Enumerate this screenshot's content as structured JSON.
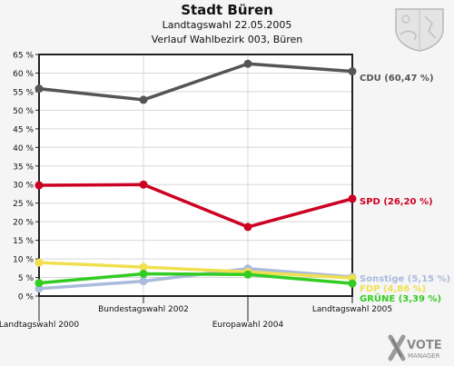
{
  "header": {
    "title": "Stadt Büren",
    "subtitle1": "Landtagswahl 22.05.2005",
    "subtitle2": "Verlauf Wahlbezirk 003, Büren"
  },
  "brand": {
    "logo_line1": "VOTE",
    "logo_line2": "MANAGER",
    "logo_icon": "vote-manager-x-icon",
    "crest_icon": "state-crest-icon"
  },
  "chart_data": {
    "type": "line",
    "categories": [
      "Landtagswahl 2000",
      "Bundestagswahl 2002",
      "Europawahl 2004",
      "Landtagswahl 2005"
    ],
    "ylim": [
      0,
      65
    ],
    "yticks": [
      0,
      5,
      10,
      15,
      20,
      25,
      30,
      35,
      40,
      45,
      50,
      55,
      60,
      65
    ],
    "ytick_labels": [
      "0 %",
      "5 %",
      "10 %",
      "15 %",
      "20 %",
      "25 %",
      "30 %",
      "35 %",
      "40 %",
      "45 %",
      "50 %",
      "55 %",
      "60 %",
      "65 %"
    ],
    "grid": true,
    "series": [
      {
        "name": "CDU",
        "label": "CDU (60,47 %)",
        "color": "#555555",
        "values": [
          55.8,
          52.8,
          62.5,
          60.47
        ]
      },
      {
        "name": "SPD",
        "label": "SPD (26,20 %)",
        "color": "#cc0022",
        "values": [
          29.8,
          30.0,
          18.6,
          26.2
        ]
      },
      {
        "name": "Sonstige",
        "label": "Sonstige (5,15 %)",
        "color": "#aabbdd",
        "values": [
          2.0,
          4.0,
          7.4,
          5.15
        ]
      },
      {
        "name": "FDP",
        "label": "FDP (4,86 %)",
        "color": "#f0e050",
        "values": [
          9.0,
          7.8,
          6.5,
          4.86
        ]
      },
      {
        "name": "GRÜNE",
        "label": "GRÜNE (3,39 %)",
        "color": "#33cc22",
        "values": [
          3.5,
          6.0,
          5.8,
          3.39
        ]
      }
    ]
  }
}
